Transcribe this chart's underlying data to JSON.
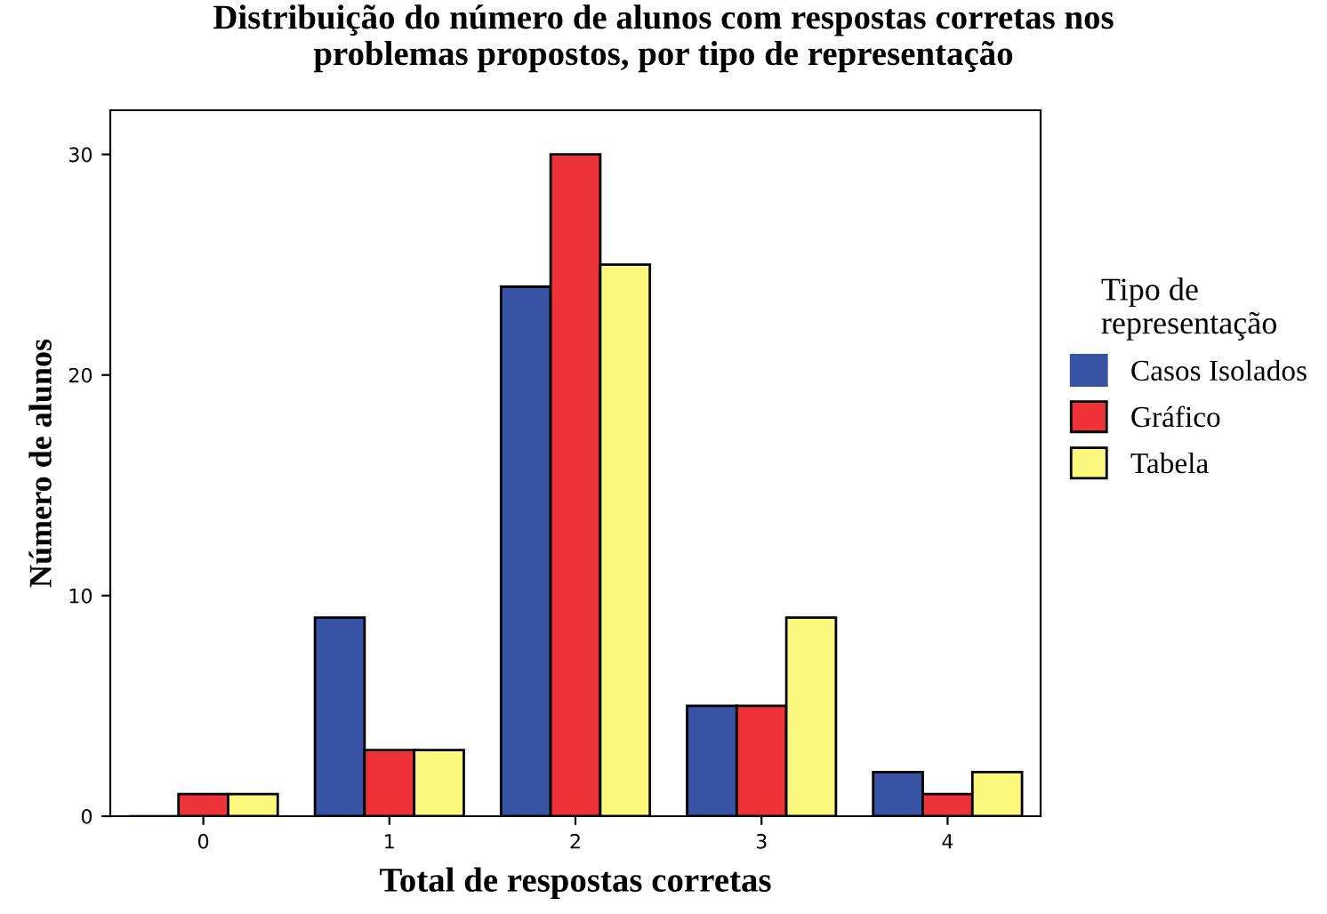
{
  "chart_data": {
    "type": "bar",
    "title": "Distribuição do número de alunos com respostas corretas nos\nproblemas propostos, por tipo de representação",
    "xlabel": "Total de respostas corretas",
    "ylabel": "Número de alunos",
    "legend_title": "Tipo de\nrepresentação",
    "categories": [
      "0",
      "1",
      "2",
      "3",
      "4"
    ],
    "series": [
      {
        "name": "Casos Isolados",
        "color": "#3953a4",
        "values": [
          0,
          9,
          24,
          5,
          2
        ]
      },
      {
        "name": "Gráfico",
        "color": "#ee3338",
        "values": [
          1,
          3,
          30,
          5,
          1
        ]
      },
      {
        "name": "Tabela",
        "color": "#fbf87d",
        "values": [
          1,
          3,
          25,
          9,
          2
        ]
      }
    ],
    "ylim": [
      0,
      32
    ],
    "yticks": [
      0,
      10,
      20,
      30
    ],
    "grid": false,
    "legend": "right"
  }
}
